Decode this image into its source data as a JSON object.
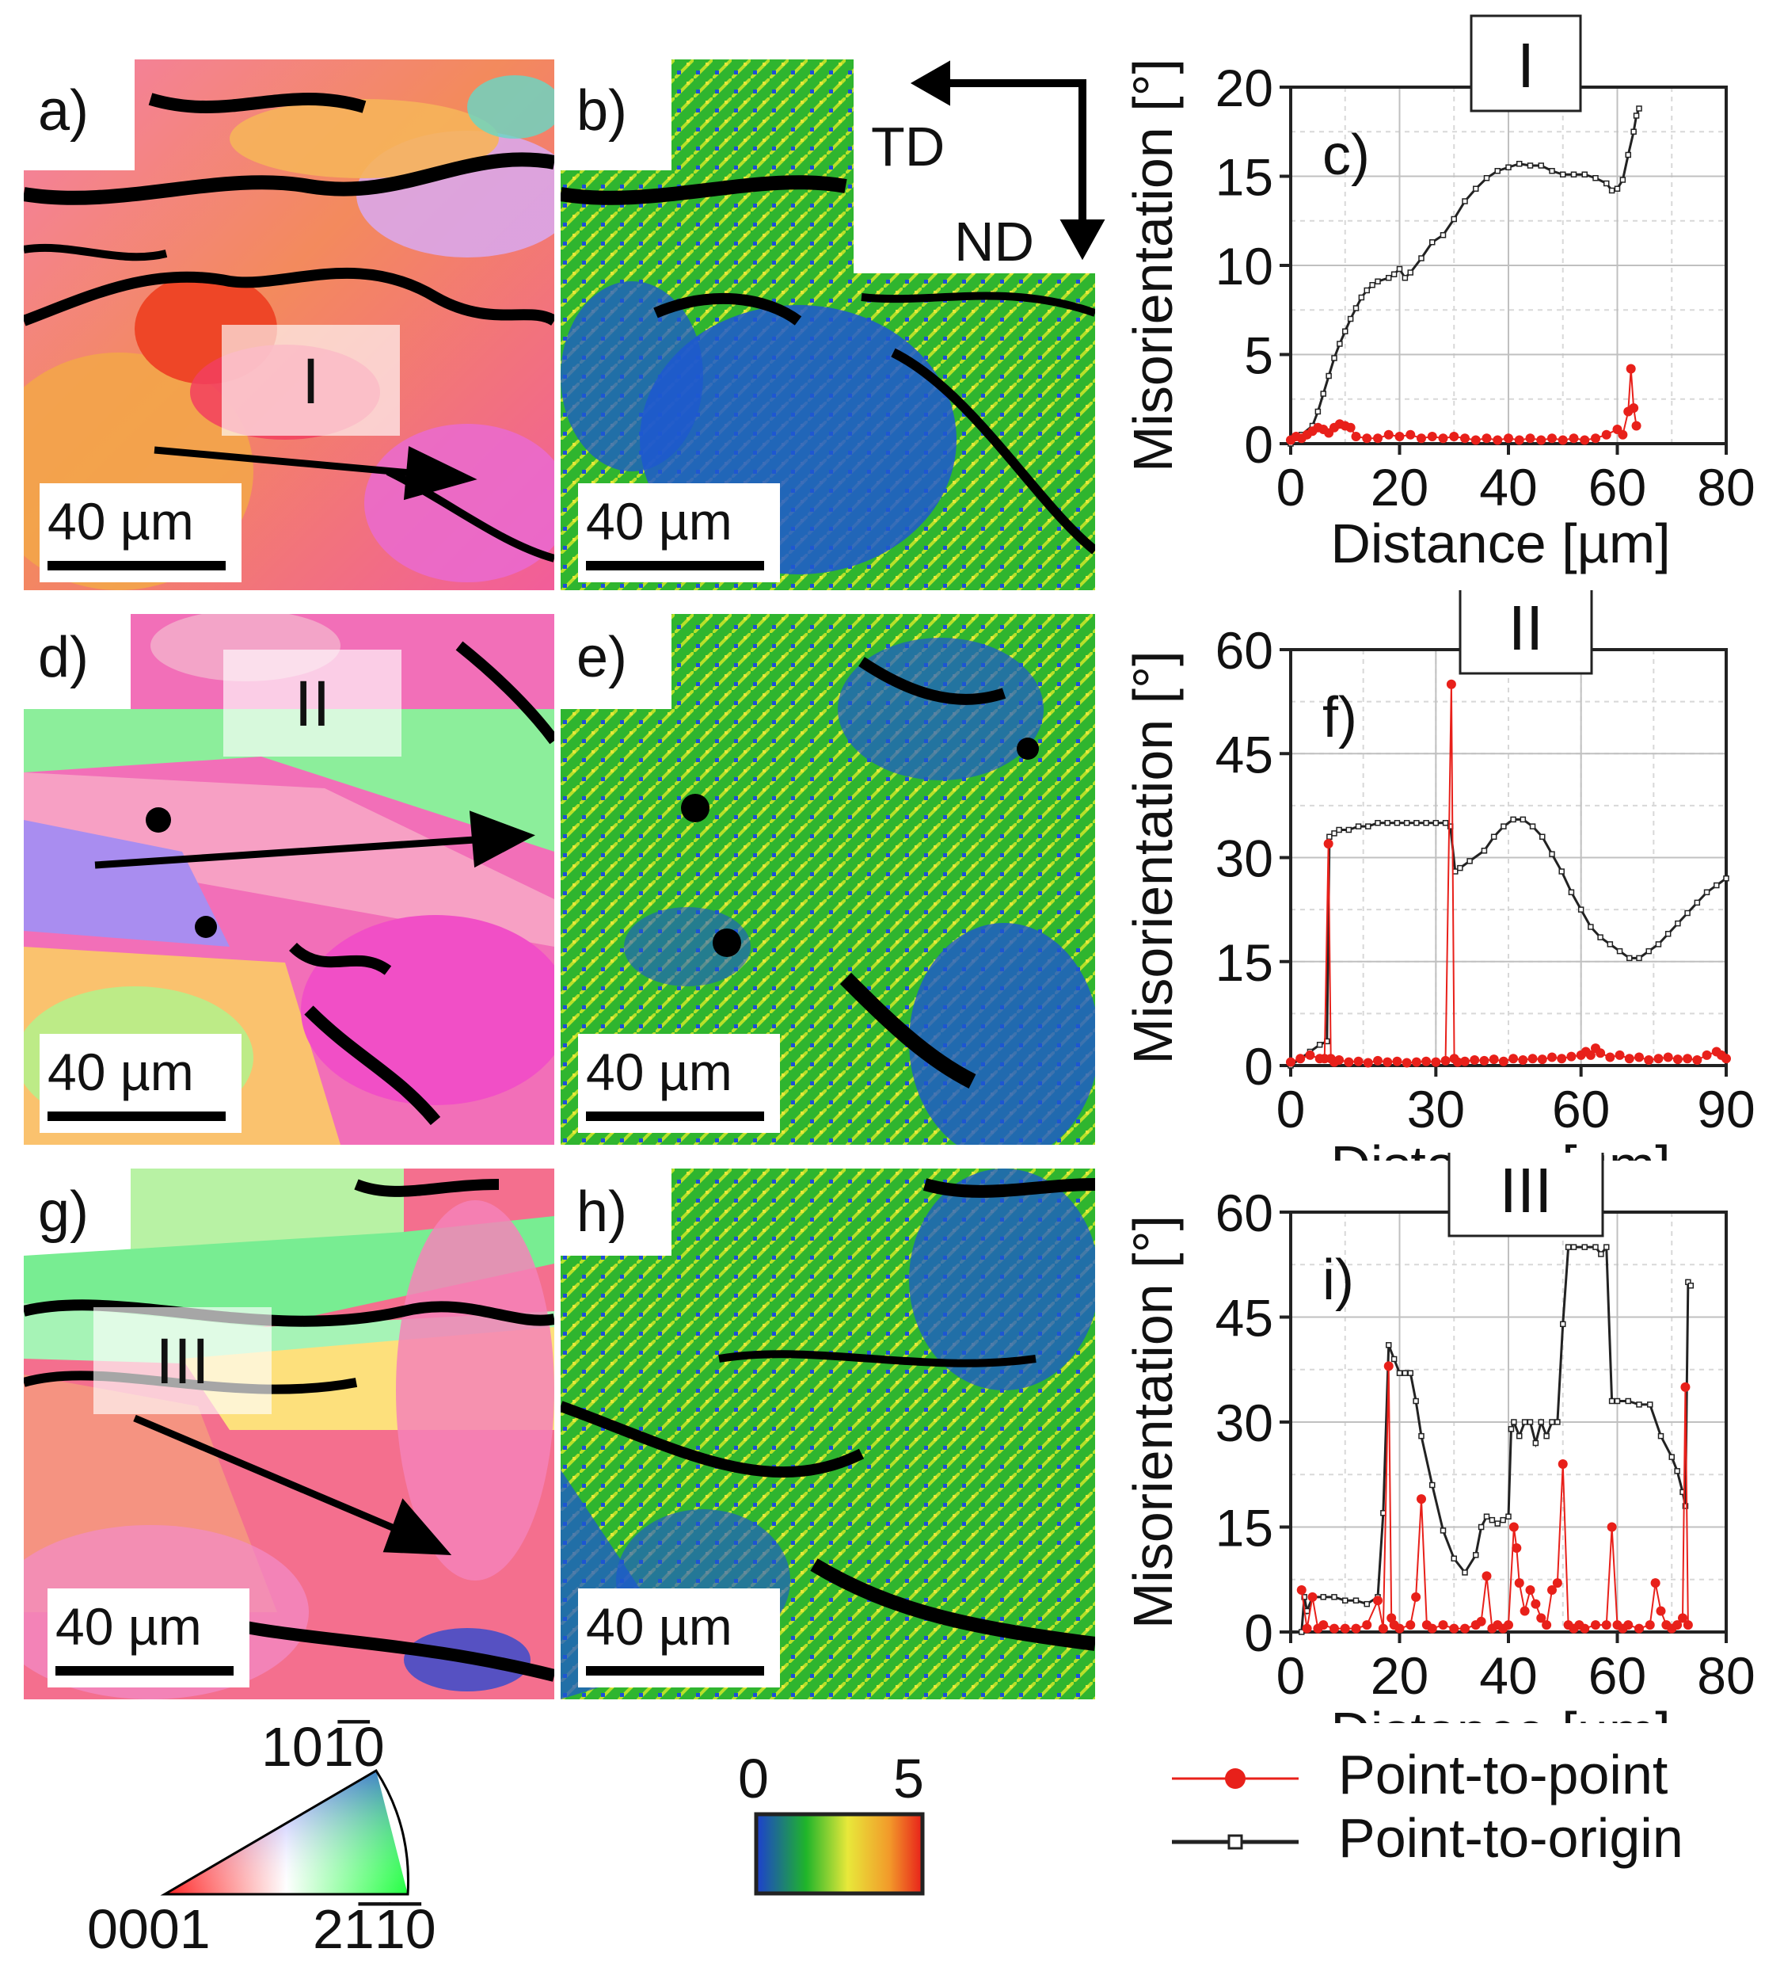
{
  "panel_labels": {
    "a": "a)",
    "b": "b)",
    "c": "c)",
    "d": "d)",
    "e": "e)",
    "f": "f)",
    "g": "g)",
    "h": "h)",
    "i": "i)"
  },
  "scale_bar_label": "40 µm",
  "line_labels": {
    "I": "I",
    "II": "II",
    "III": "III"
  },
  "directions": {
    "td": "TD",
    "nd": "ND"
  },
  "ipf_key": {
    "top": "101̅0",
    "left": "0001",
    "right": "21̅1̅0"
  },
  "kam_colorbar": {
    "min": "0",
    "max": "5"
  },
  "legend": {
    "p2p": "Point-to-point",
    "p2o": "Point-to-origin"
  },
  "colors": {
    "p2p": "#e8201a",
    "p2o": "#222222"
  },
  "chart_data": [
    {
      "type": "line",
      "id": "c",
      "box_label": "I",
      "panel_label": "c)",
      "xlabel": "Distance [µm]",
      "ylabel": "Misorientation [°]",
      "xlim": [
        0,
        80
      ],
      "ylim": [
        0,
        20
      ],
      "xticks": [
        0,
        20,
        40,
        60,
        80
      ],
      "yticks": [
        0,
        5,
        10,
        15,
        20
      ],
      "series": [
        {
          "name": "Point-to-origin",
          "x": [
            0,
            2,
            4,
            5,
            6,
            7,
            8,
            9,
            10,
            11,
            12,
            13,
            14,
            15,
            16,
            18,
            19,
            20,
            21,
            22,
            24,
            26,
            28,
            30,
            32,
            34,
            36,
            38,
            40,
            42,
            44,
            46,
            48,
            50,
            52,
            54,
            56,
            58,
            59,
            60,
            61,
            62,
            63,
            63.5,
            64
          ],
          "y": [
            0,
            0.5,
            1,
            1.8,
            2.8,
            3.8,
            4.8,
            5.6,
            6.3,
            7,
            7.6,
            8.2,
            8.6,
            8.9,
            9.1,
            9.3,
            9.5,
            9.8,
            9.3,
            9.6,
            10.4,
            11.3,
            11.7,
            12.6,
            13.6,
            14.3,
            14.9,
            15.3,
            15.5,
            15.7,
            15.6,
            15.6,
            15.3,
            15.1,
            15.1,
            15.1,
            14.9,
            14.6,
            14.2,
            14.3,
            14.8,
            16.2,
            17.5,
            18.4,
            18.8
          ]
        },
        {
          "name": "Point-to-point",
          "x": [
            0,
            1,
            2,
            3,
            4,
            5,
            6,
            7,
            8,
            9,
            10,
            11,
            12,
            14,
            16,
            18,
            20,
            22,
            24,
            26,
            28,
            30,
            32,
            34,
            36,
            38,
            40,
            42,
            44,
            46,
            48,
            50,
            52,
            54,
            56,
            58,
            60,
            61,
            62,
            62.5,
            63,
            63.5
          ],
          "y": [
            0.2,
            0.4,
            0.3,
            0.5,
            0.7,
            0.9,
            0.8,
            0.6,
            0.9,
            1.1,
            1.0,
            0.9,
            0.4,
            0.3,
            0.3,
            0.5,
            0.4,
            0.5,
            0.3,
            0.4,
            0.3,
            0.4,
            0.3,
            0.2,
            0.3,
            0.2,
            0.3,
            0.2,
            0.3,
            0.2,
            0.3,
            0.2,
            0.3,
            0.2,
            0.3,
            0.5,
            0.8,
            0.5,
            1.8,
            4.2,
            2.0,
            1.0
          ]
        }
      ]
    },
    {
      "type": "line",
      "id": "f",
      "box_label": "II",
      "panel_label": "f)",
      "xlabel": "Distance [µm]",
      "ylabel": "Misorientation [°]",
      "xlim": [
        0,
        90
      ],
      "ylim": [
        0,
        60
      ],
      "xticks": [
        0,
        30,
        60,
        90
      ],
      "yticks": [
        0,
        15,
        30,
        45,
        60
      ],
      "series": [
        {
          "name": "Point-to-origin",
          "x": [
            0,
            2,
            4,
            6,
            7.5,
            8,
            9,
            10,
            12,
            14,
            16,
            18,
            20,
            22,
            24,
            26,
            28,
            30,
            32,
            33,
            34,
            35,
            37,
            40,
            42,
            44,
            46,
            48,
            50,
            52,
            54,
            56,
            58,
            60,
            62,
            64,
            66,
            68,
            70,
            72,
            74,
            76,
            78,
            80,
            82,
            84,
            86,
            88,
            90
          ],
          "y": [
            0,
            1,
            2,
            3,
            3.5,
            33,
            33.5,
            34,
            34,
            34.5,
            34.5,
            35,
            35,
            35,
            35,
            35,
            35,
            35,
            35,
            34.5,
            28,
            28.5,
            29.5,
            31,
            33,
            34.5,
            35.5,
            35.5,
            34.5,
            33,
            30.5,
            28,
            25,
            22.5,
            20,
            18.5,
            17.5,
            16.5,
            15.5,
            15.5,
            16.5,
            17.5,
            19,
            20.5,
            22,
            23.5,
            25,
            26,
            27
          ]
        },
        {
          "name": "Point-to-point",
          "x": [
            0,
            2,
            4,
            6,
            7,
            7.8,
            8.3,
            9,
            10,
            12,
            14,
            16,
            18,
            20,
            22,
            24,
            26,
            28,
            30,
            32,
            33.2,
            33.8,
            34.5,
            36,
            38,
            40,
            42,
            44,
            46,
            48,
            50,
            52,
            54,
            56,
            58,
            60,
            61,
            62,
            63,
            64,
            66,
            68,
            70,
            72,
            74,
            76,
            78,
            80,
            82,
            84,
            86,
            88,
            89,
            90
          ],
          "y": [
            0.5,
            1,
            1.5,
            1,
            1,
            32,
            1,
            0.5,
            0.8,
            0.5,
            0.6,
            0.4,
            0.7,
            0.5,
            0.6,
            0.4,
            0.5,
            0.6,
            0.5,
            0.7,
            55,
            1,
            0.5,
            0.6,
            0.8,
            0.7,
            0.9,
            0.6,
            1.0,
            0.8,
            1.0,
            0.9,
            1.2,
            1.0,
            1.3,
            1.5,
            2.0,
            1.5,
            2.5,
            1.8,
            1.2,
            1.5,
            1.0,
            1.2,
            0.8,
            1.0,
            1.2,
            0.9,
            1.0,
            0.8,
            1.5,
            2.0,
            1.5,
            1.0
          ]
        }
      ]
    },
    {
      "type": "line",
      "id": "i",
      "box_label": "III",
      "panel_label": "i)",
      "xlabel": "Distance [µm]",
      "ylabel": "Misorientation [°]",
      "xlim": [
        0,
        80
      ],
      "ylim": [
        0,
        60
      ],
      "xticks": [
        0,
        20,
        40,
        60,
        80
      ],
      "yticks": [
        0,
        15,
        30,
        45,
        60
      ],
      "series": [
        {
          "name": "Point-to-origin",
          "x": [
            2,
            2.5,
            3,
            4,
            6,
            8,
            10,
            12,
            14,
            16,
            17,
            18,
            19,
            20,
            21,
            22,
            23,
            24,
            26,
            28,
            30,
            32,
            34,
            35,
            36,
            37,
            38,
            39,
            40,
            40.5,
            41,
            42,
            43,
            44,
            45,
            46,
            47,
            48,
            49,
            50,
            51,
            52,
            54,
            56,
            57,
            58,
            59,
            60,
            62,
            64,
            66,
            68,
            70,
            71,
            72,
            72.5,
            73,
            73.5
          ],
          "y": [
            0,
            5,
            3,
            5,
            5,
            5,
            4.5,
            4.5,
            4,
            5,
            17,
            41,
            39,
            37,
            37,
            37,
            33,
            28,
            21,
            14.5,
            10.5,
            8.5,
            11,
            15,
            16.5,
            16,
            15.5,
            16,
            16.5,
            29,
            30,
            28,
            30,
            30,
            27,
            30,
            28,
            30,
            30,
            44,
            55,
            55,
            55,
            55,
            54,
            55,
            33,
            33,
            33,
            32.5,
            32.5,
            28,
            25,
            23,
            20,
            18,
            50,
            49.5
          ]
        },
        {
          "name": "Point-to-point",
          "x": [
            2,
            3,
            4,
            5,
            6,
            8,
            10,
            12,
            14,
            16,
            17,
            18,
            18.5,
            19,
            20,
            22,
            23,
            24,
            25,
            26,
            28,
            30,
            32,
            34,
            35,
            36,
            37,
            38,
            39,
            40,
            41,
            41.5,
            42,
            43,
            44,
            45,
            46,
            47,
            48,
            49,
            50,
            51,
            52,
            53,
            54,
            56,
            58,
            59,
            60,
            61,
            62,
            64,
            66,
            67,
            68,
            69,
            70,
            71,
            72,
            72.5,
            73
          ],
          "y": [
            6,
            0.5,
            5,
            0.5,
            1,
            0.5,
            0.5,
            0.5,
            1,
            4.5,
            0.5,
            38,
            2,
            1,
            0.5,
            1,
            5,
            19,
            1,
            0.5,
            1,
            0.5,
            0.5,
            1,
            1.5,
            8,
            0.5,
            1,
            0.5,
            1,
            15,
            12,
            7,
            3,
            6,
            4,
            2,
            1,
            6,
            7,
            24,
            1,
            0.5,
            1,
            0.5,
            1,
            1,
            15,
            1,
            0.5,
            1,
            0.5,
            1,
            7,
            3,
            1,
            0.5,
            1,
            2,
            35,
            1
          ]
        }
      ]
    }
  ]
}
